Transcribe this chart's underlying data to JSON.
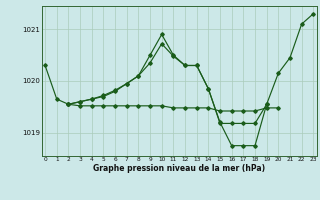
{
  "xlabel": "Graphe pression niveau de la mer (hPa)",
  "bg_color": "#cce8e8",
  "grid_color": "#aaccbb",
  "line_color": "#1a5c1a",
  "ylim": [
    1018.55,
    1021.45
  ],
  "xlim": [
    -0.3,
    23.3
  ],
  "yticks": [
    1019,
    1020,
    1021
  ],
  "xticks": [
    0,
    1,
    2,
    3,
    4,
    5,
    6,
    7,
    8,
    9,
    10,
    11,
    12,
    13,
    14,
    15,
    16,
    17,
    18,
    19,
    20,
    21,
    22,
    23
  ],
  "series1": {
    "x": [
      0,
      1,
      2,
      3,
      4,
      5,
      6,
      7,
      8,
      9,
      10,
      11,
      12,
      13,
      14,
      15,
      16,
      17,
      18,
      19,
      20,
      21,
      22,
      23
    ],
    "y": [
      1020.3,
      1019.65,
      1019.55,
      1019.6,
      1019.65,
      1019.7,
      1019.8,
      1019.95,
      1020.1,
      1020.5,
      1020.9,
      1020.5,
      1020.3,
      1020.3,
      1019.85,
      1019.2,
      1018.75,
      1018.75,
      1018.75,
      1019.55,
      1020.15,
      1020.45,
      1021.1,
      1021.3
    ]
  },
  "series2": {
    "x": [
      2,
      3,
      4,
      5,
      6,
      7,
      8,
      9,
      10,
      11,
      12,
      13,
      14,
      15,
      16,
      17,
      18,
      19,
      20
    ],
    "y": [
      1019.55,
      1019.52,
      1019.52,
      1019.52,
      1019.52,
      1019.52,
      1019.52,
      1019.52,
      1019.52,
      1019.48,
      1019.48,
      1019.48,
      1019.48,
      1019.42,
      1019.42,
      1019.42,
      1019.42,
      1019.48,
      1019.48
    ]
  },
  "series3": {
    "x": [
      2,
      3,
      4,
      5,
      6,
      7,
      8,
      9,
      10,
      11,
      12,
      13,
      14,
      15,
      16,
      17,
      18,
      19
    ],
    "y": [
      1019.55,
      1019.6,
      1019.65,
      1019.72,
      1019.82,
      1019.95,
      1020.1,
      1020.35,
      1020.72,
      1020.48,
      1020.3,
      1020.3,
      1019.85,
      1019.18,
      1019.18,
      1019.18,
      1019.18,
      1019.55
    ]
  }
}
